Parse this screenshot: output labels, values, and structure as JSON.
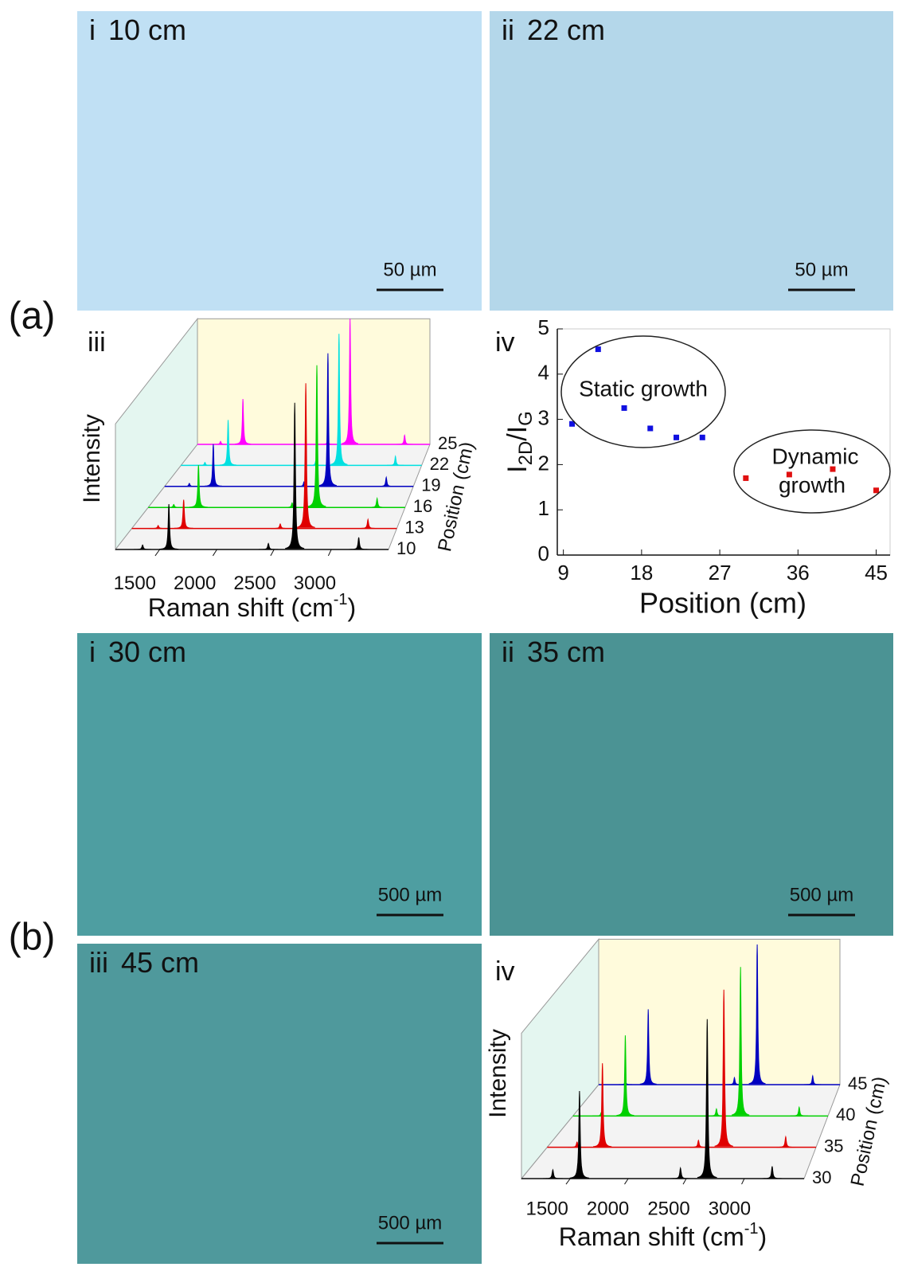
{
  "figure_labels": [
    "(a)",
    "(b)"
  ],
  "micrographs": [
    {
      "label": "i",
      "caption": "10 cm",
      "scale_bar": "50 µm",
      "color": "#c0e0f4"
    },
    {
      "label": "ii",
      "caption": "22 cm",
      "scale_bar": "50 µm",
      "color": "#b4d7ea"
    },
    {
      "label": "i",
      "caption": "30 cm",
      "scale_bar": "500 µm",
      "color": "#4e9ea1"
    },
    {
      "label": "ii",
      "caption": "35 cm",
      "scale_bar": "500 µm",
      "color": "#4b9394"
    },
    {
      "label": "iii",
      "caption": "45 cm",
      "scale_bar": "500 µm",
      "color": "#4f999c"
    }
  ],
  "chart_data": [
    {
      "type": "waterfall",
      "label": "iii",
      "y_label": "Intensity",
      "x_label_parts": [
        "Raman shift (cm",
        "-1",
        ")"
      ],
      "z_label": "Position (cm)",
      "xlim": [
        1113,
        3500
      ],
      "xticks": [
        1500,
        2000,
        2500,
        3000
      ],
      "ylim": [
        0,
        1
      ],
      "x": [
        1350,
        1580,
        2450,
        2680,
        3240
      ],
      "series": [
        {
          "name": "10",
          "color": "#000000",
          "values": [
            0.03,
            0.3,
            0.04,
            0.97,
            0.08
          ]
        },
        {
          "name": "13",
          "color": "#e00000",
          "values": [
            0.02,
            0.19,
            0.03,
            0.96,
            0.06
          ]
        },
        {
          "name": "16",
          "color": "#00d000",
          "values": [
            0.02,
            0.28,
            0.03,
            0.94,
            0.06
          ]
        },
        {
          "name": "19",
          "color": "#0000c0",
          "values": [
            0.02,
            0.28,
            0.03,
            0.88,
            0.06
          ]
        },
        {
          "name": "22",
          "color": "#00e0e0",
          "values": [
            0.02,
            0.3,
            0.03,
            0.87,
            0.06
          ]
        },
        {
          "name": "25",
          "color": "#ff00ff",
          "values": [
            0.02,
            0.3,
            0.03,
            0.83,
            0.06
          ]
        }
      ]
    },
    {
      "type": "scatter",
      "label": "iv",
      "y_label_parts": [
        "I",
        "2D",
        "/I",
        "G"
      ],
      "x_label": "Position (cm)",
      "xlim": [
        8.3,
        46.6
      ],
      "xticks": [
        9,
        18,
        27,
        36,
        45
      ],
      "ylim": [
        0,
        5
      ],
      "yticks": [
        0,
        1,
        2,
        3,
        4,
        5
      ],
      "annotations": [
        [
          "Static growth"
        ],
        [
          "Dynamic",
          "growth"
        ]
      ],
      "series": [
        {
          "color": "#1010e0",
          "x": [
            10,
            13,
            16,
            19,
            22,
            25
          ],
          "values": [
            2.9,
            4.55,
            3.25,
            2.8,
            2.6,
            2.6
          ]
        },
        {
          "color": "#e01010",
          "x": [
            30,
            35,
            40,
            45
          ],
          "values": [
            1.7,
            1.78,
            1.9,
            1.43
          ]
        }
      ]
    },
    {
      "type": "waterfall",
      "label": "iv",
      "y_label": "Intensity",
      "x_label_parts": [
        "Raman shift (cm",
        "-1",
        ")"
      ],
      "z_label": "Position (cm)",
      "xlim": [
        1080,
        3515
      ],
      "xticks": [
        1500,
        2000,
        2500,
        3000
      ],
      "ylim": [
        0,
        1
      ],
      "x": [
        1350,
        1580,
        2450,
        2680,
        3240
      ],
      "series": [
        {
          "name": "30",
          "color": "#000000",
          "values": [
            0.05,
            0.5,
            0.06,
            0.91,
            0.07
          ]
        },
        {
          "name": "35",
          "color": "#e00000",
          "values": [
            0.03,
            0.48,
            0.04,
            0.9,
            0.06
          ]
        },
        {
          "name": "40",
          "color": "#00d000",
          "values": [
            0.02,
            0.46,
            0.04,
            0.85,
            0.05
          ]
        },
        {
          "name": "45",
          "color": "#0000c0",
          "values": [
            0.02,
            0.43,
            0.04,
            0.8,
            0.05
          ]
        }
      ]
    }
  ]
}
